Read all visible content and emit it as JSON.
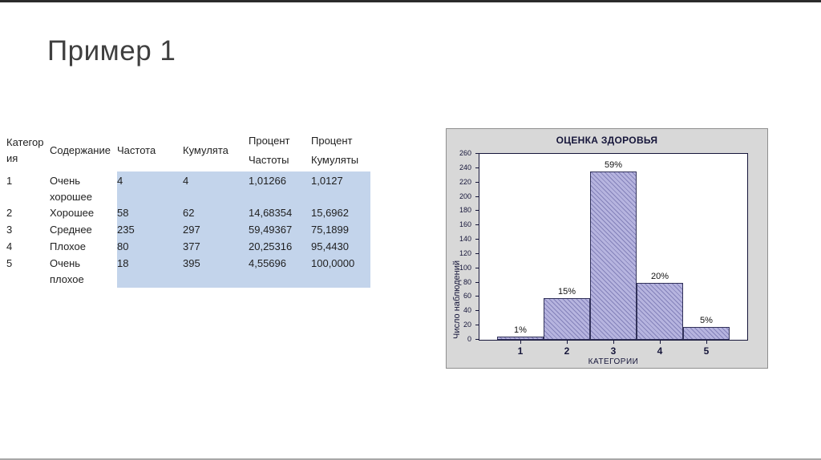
{
  "slide": {
    "title": "Пример 1"
  },
  "table": {
    "highlight_color": "#c3d4eb",
    "headers": {
      "category": "Категория",
      "content": "Содержание",
      "frequency": "Частота",
      "cumulative": "Кумулята",
      "percent_frequency_line1": "Процент",
      "percent_frequency_line2": "Частоты",
      "percent_cumulative_line1": "Процент",
      "percent_cumulative_line2": "Кумуляты"
    },
    "rows": [
      {
        "category": "1",
        "content": "Очень хорошее",
        "frequency": "4",
        "cumulative": "4",
        "percent_frequency": "1,01266",
        "percent_cumulative": "1,0127"
      },
      {
        "category": "2",
        "content": "Хорошее",
        "frequency": "58",
        "cumulative": "62",
        "percent_frequency": "14,68354",
        "percent_cumulative": "15,6962"
      },
      {
        "category": "3",
        "content": "Среднее",
        "frequency": "235",
        "cumulative": "297",
        "percent_frequency": "59,49367",
        "percent_cumulative": "75,1899"
      },
      {
        "category": "4",
        "content": "Плохое",
        "frequency": "80",
        "cumulative": "377",
        "percent_frequency": "20,25316",
        "percent_cumulative": "95,4430"
      },
      {
        "category": "5",
        "content": "Очень плохое",
        "frequency": "18",
        "cumulative": "395",
        "percent_frequency": "4,55696",
        "percent_cumulative": "100,0000"
      }
    ]
  },
  "chart_data": {
    "type": "bar",
    "title": "ОЦЕНКА ЗДОРОВЬЯ",
    "xlabel": "КАТЕГОРИИ",
    "ylabel": "Число наблюдений",
    "categories": [
      "1",
      "2",
      "3",
      "4",
      "5"
    ],
    "values": [
      4,
      58,
      235,
      80,
      18
    ],
    "bar_labels": [
      "1%",
      "15%",
      "59%",
      "20%",
      "5%"
    ],
    "ylim": [
      0,
      260
    ],
    "yticks": [
      0,
      20,
      40,
      60,
      80,
      100,
      120,
      140,
      160,
      180,
      200,
      220,
      240,
      260
    ],
    "grid": false,
    "legend": "none",
    "bar_color": "#b6b4df",
    "bar_border_color": "#32325a",
    "panel_color": "#d8d8d8"
  }
}
